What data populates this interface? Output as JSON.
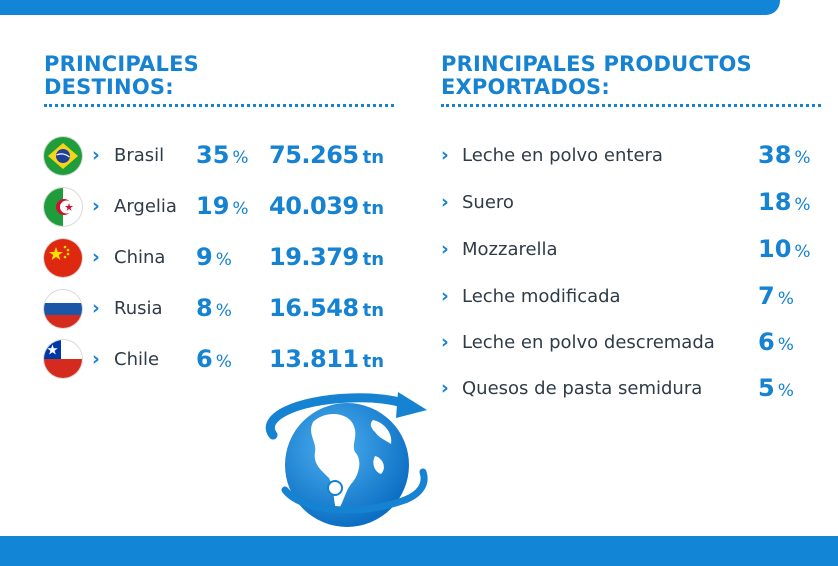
{
  "destinations": {
    "heading_line1": "PRINCIPALES",
    "heading_line2": "DESTINOS:",
    "items": [
      {
        "flag": "brazil-flag",
        "name": "Brasil",
        "pct": "35",
        "pct_unit": "%",
        "tons": "75.265",
        "tons_unit": "tn"
      },
      {
        "flag": "algeria-flag",
        "name": "Argelia",
        "pct": "19",
        "pct_unit": "%",
        "tons": "40.039",
        "tons_unit": "tn"
      },
      {
        "flag": "china-flag",
        "name": "China",
        "pct": "9",
        "pct_unit": "%",
        "tons": "19.379",
        "tons_unit": "tn"
      },
      {
        "flag": "russia-flag",
        "name": "Rusia",
        "pct": "8",
        "pct_unit": "%",
        "tons": "16.548",
        "tons_unit": "tn"
      },
      {
        "flag": "chile-flag",
        "name": "Chile",
        "pct": "6",
        "pct_unit": "%",
        "tons": "13.811",
        "tons_unit": "tn"
      }
    ]
  },
  "products": {
    "heading_line1": "PRINCIPALES PRODUCTOS",
    "heading_line2": "EXPORTADOS:",
    "items": [
      {
        "name": "Leche en polvo entera",
        "pct": "38",
        "pct_unit": "%"
      },
      {
        "name": "Suero",
        "pct": "18",
        "pct_unit": "%"
      },
      {
        "name": "Mozzarella",
        "pct": "10",
        "pct_unit": "%"
      },
      {
        "name": "Leche modificada",
        "pct": "7",
        "pct_unit": "%"
      },
      {
        "name": "Leche en polvo descremada",
        "pct": "6",
        "pct_unit": "%"
      },
      {
        "name": "Quesos de pasta semidura",
        "pct": "5",
        "pct_unit": "%"
      }
    ]
  },
  "chevron": "›",
  "colors": {
    "accent": "#1582d2",
    "bar": "#1385d6",
    "text": "#2f3b47"
  }
}
